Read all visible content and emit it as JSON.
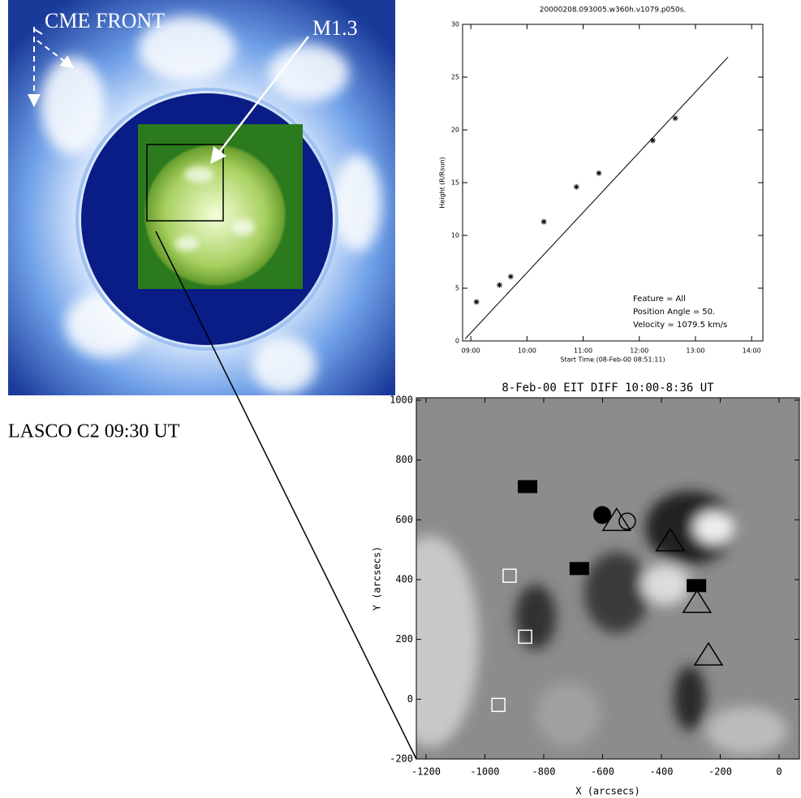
{
  "images": {
    "lasco": {
      "labels": [
        "CME FRONT",
        "M1.3"
      ],
      "caption": "LASCO C2 09:30 UT"
    }
  },
  "chart_data": [
    {
      "type": "scatter",
      "title": "20000208.093005.w360h.v1079.p050s.",
      "xlabel": "Start Time (08-Feb-00 08:51:11)",
      "ylabel": "Height (R/Rsun)",
      "xlim": [
        8.853,
        14.2
      ],
      "ylim": [
        0,
        30
      ],
      "xticks": [
        {
          "value": 9,
          "label": "09:00"
        },
        {
          "value": 10,
          "label": "10:00"
        },
        {
          "value": 11,
          "label": "11:00"
        },
        {
          "value": 12,
          "label": "12:00"
        },
        {
          "value": 13,
          "label": "13:00"
        },
        {
          "value": 14,
          "label": "14:00"
        }
      ],
      "yticks": [
        0,
        5,
        10,
        15,
        20,
        25,
        30
      ],
      "series": [
        {
          "color": "#000000",
          "marker": "star",
          "x": [
            9.1,
            9.51,
            9.71,
            10.3,
            10.88,
            11.28,
            12.24,
            12.64
          ],
          "values": [
            3.7,
            5.3,
            6.1,
            11.3,
            14.6,
            15.9,
            19.0,
            21.1
          ]
        }
      ],
      "fit": {
        "color": "#000000",
        "x": [
          8.9,
          13.58
        ],
        "values": [
          0.2,
          26.9
        ]
      },
      "annotations": [
        "Feature = All",
        "Position Angle =    50.",
        "Velocity = 1079.5 km/s"
      ]
    },
    {
      "type": "scatter",
      "title": "8-Feb-00 EIT DIFF 10:00-8:36 UT",
      "xlabel": "X (arcsecs)",
      "ylabel": "Y (arcsecs)",
      "xlim": [
        -1233,
        69
      ],
      "ylim": [
        -200,
        1008
      ],
      "xticks": [
        -1200,
        -1000,
        -800,
        -600,
        -400,
        -200,
        0
      ],
      "yticks": [
        -200,
        0,
        200,
        400,
        600,
        800,
        1000
      ],
      "series": [
        {
          "color": "#000000",
          "marker": "filled-square",
          "x": [
            -855,
            -679,
            -281
          ],
          "values": [
            711,
            437,
            380
          ]
        },
        {
          "color": "#000000",
          "marker": "filled-circle",
          "x": [
            -601
          ],
          "values": [
            616
          ]
        },
        {
          "color": "#000000",
          "marker": "open-circle",
          "x": [
            -516
          ],
          "values": [
            595
          ]
        },
        {
          "color": "#000000",
          "marker": "open-triangle",
          "x": [
            -552,
            -370,
            -279,
            -240
          ],
          "values": [
            597,
            529,
            323,
            147
          ]
        },
        {
          "color": "#ffffff",
          "marker": "open-square",
          "x": [
            -916,
            -863,
            -954
          ],
          "values": [
            413,
            209,
            -19
          ]
        }
      ]
    }
  ]
}
